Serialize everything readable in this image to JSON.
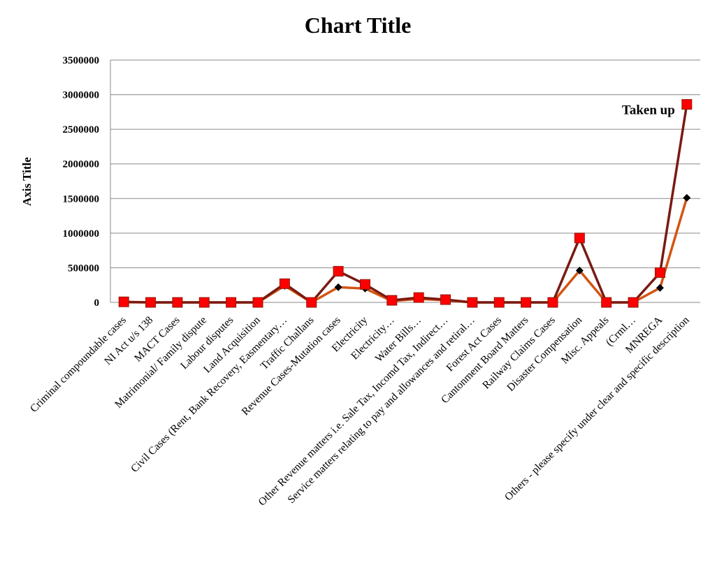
{
  "chart_data": {
    "type": "line",
    "title": "Chart Title",
    "xlabel": "",
    "ylabel": "Axis Title",
    "ylim": [
      0,
      3500000
    ],
    "yticks": [
      "0",
      "500000",
      "1000000",
      "1500000",
      "2000000",
      "2500000",
      "3000000",
      "3500000"
    ],
    "grid": "horizontal",
    "categories": [
      "Criminal compoundable cases",
      "NI Act  u/s 138",
      "MACT Cases",
      "Matrimonial/ Family dispute",
      "Labour disputes",
      "Land Acquisition",
      "Civil Cases (Rent, Bank Recovery, Easmentary…",
      "Traffic Challans",
      "Revenue Cases-Mutation cases",
      "Electricity",
      "Electricity…",
      "Water Bills…",
      "Other Revenue matters i.e. Sale Tax, Incomd Tax, Indirect…",
      "Service matters relating to pay and allowances and retiral…",
      "Forest Act Cases",
      "Cantonment Board Matters",
      "Railway Claims Cases",
      "Disaster Compensation",
      "Misc. Appeals",
      "(Crml…",
      "MNREGA",
      "Others - please specify under clear and specific description"
    ],
    "series": [
      {
        "name": "",
        "color": "#d35512",
        "marker": "diamond",
        "marker_color": "#000000",
        "values": [
          3000,
          0,
          0,
          0,
          0,
          0,
          240000,
          0,
          220000,
          200000,
          20000,
          50000,
          30000,
          0,
          0,
          0,
          0,
          460000,
          0,
          0,
          210000,
          1510000
        ]
      },
      {
        "name": "Taken up",
        "color": "#7a1a12",
        "marker": "square",
        "marker_color": "#ff0000",
        "values": [
          8000,
          0,
          0,
          0,
          0,
          0,
          270000,
          0,
          450000,
          260000,
          30000,
          70000,
          40000,
          0,
          0,
          0,
          0,
          930000,
          0,
          0,
          430000,
          2860000
        ]
      }
    ],
    "annotations": [
      {
        "text": "Taken up",
        "series": "Taken up",
        "category_index": 21
      }
    ]
  }
}
